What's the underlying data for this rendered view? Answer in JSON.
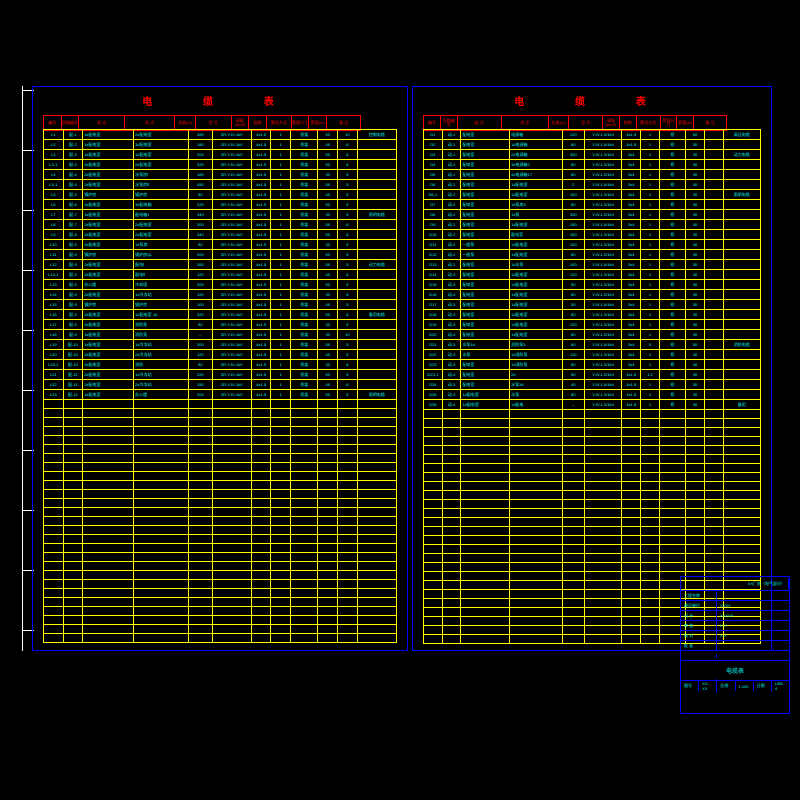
{
  "sheet": {
    "title_cn": "电 缆 表",
    "frame_color": "#0000ff",
    "grid_color": "#ffff00",
    "header_color": "#ff0000",
    "data_color": "#00ffff",
    "background": "#000000"
  },
  "header": {
    "cols": [
      "编号",
      "回路编号",
      "起 点",
      "终 点",
      "长度(m)",
      "型 号",
      "规格(mm²)",
      "根数",
      "敷设方式",
      "套管尺寸",
      "套管(m)",
      "备 注"
    ],
    "group1": "敷 设 方 向",
    "group2": "电 缆 规 格"
  },
  "colwidths": [
    "5%",
    "5%",
    "13%",
    "14%",
    "6%",
    "10%",
    "5%",
    "5%",
    "7%",
    "5%",
    "5%",
    "10%"
  ],
  "left_rows": [
    [
      "L1",
      "配-1",
      "1#配电室",
      "2#配电室",
      "280",
      "ZR-YJV-1kV",
      "4x1.5",
      "1",
      "桥架",
      "50",
      "10",
      "控制电缆"
    ],
    [
      "L2",
      "配-2",
      "1#配电室",
      "3#配电室",
      "180",
      "ZR-YJV-1kV",
      "4x1.5",
      "1",
      "桥架",
      "40",
      "8",
      ""
    ],
    [
      "L3",
      "配-3",
      "1#配电室",
      "1#配电室",
      "200",
      "ZR-YJV-1kV",
      "4x1.5",
      "1",
      "桥架",
      "50",
      "6",
      ""
    ],
    [
      "L3-1",
      "配-3",
      "2#配电室",
      "2#配电室",
      "320",
      "ZR-YJV-1kV",
      "4x1.5",
      "1",
      "桥架",
      "50",
      "6",
      ""
    ],
    [
      "L4",
      "配-4",
      "2#配电室",
      "水泵房Ⅰ",
      "180",
      "ZR-YJV-1kV",
      "4x1.5",
      "1",
      "桥架",
      "30",
      "5",
      ""
    ],
    [
      "L5-1",
      "配-4",
      "2#配电室",
      "水泵房Ⅱ",
      "450",
      "ZR-YJV-1kV",
      "4x1.5",
      "1",
      "桥架",
      "50",
      "5",
      ""
    ],
    [
      "L5",
      "配-5",
      "锅炉房",
      "锅炉房",
      "80",
      "ZR-YJV-1kV",
      "4x1.5",
      "1",
      "桥架",
      "40",
      "5",
      ""
    ],
    [
      "L6",
      "配-6",
      "1#配电室",
      "3#配电箱",
      "220",
      "ZR-YJV-1kV",
      "4x1.5",
      "1",
      "桥架",
      "50",
      "5",
      ""
    ],
    [
      "L7",
      "配-7",
      "1#配电室",
      "配电箱1",
      "340",
      "ZR-YJV-1kV",
      "4x1.5",
      "1",
      "桥架",
      "30",
      "5",
      "照明电缆"
    ],
    [
      "L8",
      "配-7",
      "2#配电室",
      "2#配电室",
      "200",
      "ZR-YJV-1kV",
      "4x1.5",
      "1",
      "桥架",
      "50",
      "8",
      ""
    ],
    [
      "L9",
      "配-8",
      "2#配电室",
      "2#配电室",
      "340",
      "ZR-YJV-1kV",
      "4x1.5",
      "1",
      "桥架",
      "50",
      "8",
      ""
    ],
    [
      "L10",
      "配-9",
      "2#配电室",
      "1#泵房",
      "80",
      "ZR-YJV-1kV",
      "4x1.5",
      "1",
      "桥架",
      "30",
      "5",
      ""
    ],
    [
      "L11",
      "配-9",
      "锅炉房",
      "锅炉房QL",
      "200",
      "ZR-YJV-1kV",
      "4x1.5",
      "1",
      "桥架",
      "50",
      "5",
      ""
    ],
    [
      "L12",
      "配-9",
      "2#配电室",
      "配电Ⅰ",
      "260",
      "ZR-YJV-1kV",
      "4x1.5",
      "1",
      "桥架",
      "50",
      "5",
      "动力电缆"
    ],
    [
      "L12-1",
      "配-9",
      "2#配电室",
      "配电Ⅱ",
      "120",
      "ZR-YJV-1kV",
      "4x1.5",
      "1",
      "桥架",
      "40",
      "6",
      ""
    ],
    [
      "L13",
      "配-9",
      "办公楼",
      "冷却塔",
      "200",
      "ZR-YJV-1kV",
      "4x1.5",
      "1",
      "桥架",
      "50",
      "5",
      ""
    ],
    [
      "L14",
      "配-9",
      "2#配电室",
      "1#冷冻站",
      "120",
      "ZR-YJV-1kV",
      "4x1.5",
      "1",
      "桥架",
      "30",
      "8",
      ""
    ],
    [
      "L15",
      "配-9",
      "锅炉房",
      "锅炉房",
      "100",
      "ZR-YJV-1kV",
      "4x1.5",
      "1",
      "桥架",
      "40",
      "5",
      ""
    ],
    [
      "L16",
      "配-9",
      "2#配电室",
      "1#配电室-1#",
      "320",
      "ZR-YJV-1kV",
      "4x1.5",
      "1",
      "桥架",
      "50",
      "8",
      "备用电缆"
    ],
    [
      "L17",
      "配-9",
      "2#配电室",
      "消防泵",
      "80",
      "ZR-YJV-1kV",
      "4x1.5",
      "1",
      "桥架",
      "30",
      "5",
      ""
    ],
    [
      "L18",
      "配-9",
      "1#配电室",
      "消防泵",
      "--",
      "ZR-YJV-1kV",
      "4x1.5",
      "1",
      "桥架",
      "30",
      "10",
      ""
    ],
    [
      "L19",
      "配-10",
      "1#配电室",
      "1#冷冻站",
      "200",
      "ZR-YJV-1kV",
      "4x1.5",
      "1",
      "桥架",
      "50",
      "5",
      ""
    ],
    [
      "L20",
      "配-10",
      "2#配电室",
      "2#冷冻站",
      "120",
      "ZR-YJV-1kV",
      "4x1.5",
      "1",
      "桥架",
      "40",
      "5",
      ""
    ],
    [
      "L20-1",
      "配-10",
      "2#配电室",
      "消防",
      "80",
      "ZR-YJV-1kV",
      "4x1.5",
      "1",
      "桥架",
      "30",
      "8",
      ""
    ],
    [
      "L21",
      "配-11",
      "2#配电室",
      "1#冷冻站",
      "220",
      "ZR-YJV-1kV",
      "4x1.5",
      "1",
      "桥架",
      "50",
      "5",
      ""
    ],
    [
      "L22",
      "配-11",
      "2#配电室",
      "2#冷冻站",
      "150",
      "ZR-YJV-1kV",
      "4x1.5",
      "1",
      "桥架",
      "40",
      "8",
      ""
    ],
    [
      "L23",
      "配-12",
      "1#配电室",
      "办公楼",
      "200",
      "ZR-YJV-1kV",
      "4x1.5",
      "1",
      "桥架",
      "50",
      "5",
      "照明电缆"
    ],
    [
      "",
      "",
      "",
      "",
      "",
      "",
      "",
      "",
      "",
      "",
      "",
      ""
    ],
    [
      "",
      "",
      "",
      "",
      "",
      "",
      "",
      "",
      "",
      "",
      "",
      ""
    ],
    [
      "",
      "",
      "",
      "",
      "",
      "",
      "",
      "",
      "",
      "",
      "",
      ""
    ],
    [
      "",
      "",
      "",
      "",
      "",
      "",
      "",
      "",
      "",
      "",
      "",
      ""
    ],
    [
      "",
      "",
      "",
      "",
      "",
      "",
      "",
      "",
      "",
      "",
      "",
      ""
    ],
    [
      "",
      "",
      "",
      "",
      "",
      "",
      "",
      "",
      "",
      "",
      "",
      ""
    ],
    [
      "",
      "",
      "",
      "",
      "",
      "",
      "",
      "",
      "",
      "",
      "",
      ""
    ],
    [
      "",
      "",
      "",
      "",
      "",
      "",
      "",
      "",
      "",
      "",
      "",
      ""
    ],
    [
      "",
      "",
      "",
      "",
      "",
      "",
      "",
      "",
      "",
      "",
      "",
      ""
    ],
    [
      "",
      "",
      "",
      "",
      "",
      "",
      "",
      "",
      "",
      "",
      "",
      ""
    ],
    [
      "",
      "",
      "",
      "",
      "",
      "",
      "",
      "",
      "",
      "",
      "",
      ""
    ],
    [
      "",
      "",
      "",
      "",
      "",
      "",
      "",
      "",
      "",
      "",
      "",
      ""
    ],
    [
      "",
      "",
      "",
      "",
      "",
      "",
      "",
      "",
      "",
      "",
      "",
      ""
    ],
    [
      "",
      "",
      "",
      "",
      "",
      "",
      "",
      "",
      "",
      "",
      "",
      ""
    ],
    [
      "",
      "",
      "",
      "",
      "",
      "",
      "",
      "",
      "",
      "",
      "",
      ""
    ],
    [
      "",
      "",
      "",
      "",
      "",
      "",
      "",
      "",
      "",
      "",
      "",
      ""
    ],
    [
      "",
      "",
      "",
      "",
      "",
      "",
      "",
      "",
      "",
      "",
      "",
      ""
    ],
    [
      "",
      "",
      "",
      "",
      "",
      "",
      "",
      "",
      "",
      "",
      "",
      ""
    ],
    [
      "",
      "",
      "",
      "",
      "",
      "",
      "",
      "",
      "",
      "",
      "",
      ""
    ],
    [
      "",
      "",
      "",
      "",
      "",
      "",
      "",
      "",
      "",
      "",
      "",
      ""
    ],
    [
      "",
      "",
      "",
      "",
      "",
      "",
      "",
      "",
      "",
      "",
      "",
      ""
    ],
    [
      "",
      "",
      "",
      "",
      "",
      "",
      "",
      "",
      "",
      "",
      "",
      ""
    ],
    [
      "",
      "",
      "",
      "",
      "",
      "",
      "",
      "",
      "",
      "",
      "",
      ""
    ],
    [
      "",
      "",
      "",
      "",
      "",
      "",
      "",
      "",
      "",
      "",
      "",
      ""
    ],
    [
      "",
      "",
      "",
      "",
      "",
      "",
      "",
      "",
      "",
      "",
      "",
      ""
    ],
    [
      "",
      "",
      "",
      "",
      "",
      "",
      "",
      "",
      "",
      "",
      "",
      ""
    ],
    [
      "",
      "",
      "",
      "",
      "",
      "",
      "",
      "",
      "",
      "",
      "",
      ""
    ]
  ],
  "right_rows": [
    [
      "D1",
      "动-1",
      "配电室",
      "电源箱",
      "120",
      "YJV-1.0/1kV",
      "4x1.5",
      "1",
      "桥",
      "50",
      "",
      "高压电缆"
    ],
    [
      "D2",
      "动-1",
      "配电室",
      "1#电源箱",
      "80",
      "YJV-1.0/1kV",
      "4x1.5",
      "1",
      "桥",
      "30",
      "",
      ""
    ],
    [
      "D3",
      "动-1",
      "配电室",
      "2#电源箱",
      "300",
      "YJV-1.0/1kV",
      "3x4",
      "1",
      "桥",
      "30",
      "",
      "动力电缆"
    ],
    [
      "D4",
      "动-1",
      "配电室",
      "3#电源箱2",
      "80",
      "YJV-1.0/1kV",
      "3x4",
      "1",
      "桥",
      "30",
      "",
      ""
    ],
    [
      "D5",
      "动-1",
      "配电室",
      "4#电源箱17",
      "80",
      "YJV-1.0/1kV",
      "3x4",
      "1",
      "桥",
      "30",
      "",
      ""
    ],
    [
      "D6",
      "动-2",
      "配电室",
      "1#配电室",
      "2",
      "YJV-1.0/1kV",
      "3x4",
      "1",
      "桥",
      "40",
      "",
      ""
    ],
    [
      "D6-1",
      "动-2",
      "配电室",
      "1#配电室",
      "100",
      "YJV-1.0/1kV",
      "3x4",
      "1",
      "桥",
      "30",
      "",
      "照明电缆"
    ],
    [
      "D7",
      "动-2",
      "配电室",
      "1#泵房6",
      "80",
      "YJV-1.0/1kV",
      "3x4",
      "1",
      "桥",
      "30",
      "",
      ""
    ],
    [
      "D8",
      "动-2",
      "配电室",
      "1#泵",
      "340",
      "YJV-1.0/1kV",
      "3x4",
      "1",
      "桥",
      "30",
      "",
      ""
    ],
    [
      "D9",
      "动-2",
      "配电室",
      "1#配电室",
      "150",
      "YJV-1.0/1kV",
      "3x4",
      "1",
      "桥",
      "40",
      "",
      ""
    ],
    [
      "D10",
      "动-2",
      "配电室",
      "配电室",
      "180",
      "YJV-1.0/1kV",
      "3x4",
      "1",
      "桥",
      "30",
      "",
      ""
    ],
    [
      "D11",
      "动-2",
      "一般泵",
      "1#配电室",
      "100",
      "YJV-1.0/1kV",
      "3x4",
      "1",
      "桥",
      "40",
      "",
      ""
    ],
    [
      "D12",
      "动-2",
      "一般泵",
      "1#配电室",
      "80",
      "YJV-1.0/1kV",
      "3x4",
      "1",
      "桥",
      "30",
      "",
      ""
    ],
    [
      "D13",
      "动-2",
      "配电室",
      "1#水泵",
      "100",
      "YJV-1.0/1kV",
      "3x4",
      "1",
      "桥",
      "30",
      "",
      ""
    ],
    [
      "D14",
      "动-3",
      "配电室",
      "1#配电室",
      "120",
      "YJV-1.0/1kV",
      "3x4",
      "1",
      "桥",
      "40",
      "",
      ""
    ],
    [
      "D15",
      "动-3",
      "配电室",
      "1#配电室",
      "50",
      "YJV-1.0/1kV",
      "3x4",
      "1",
      "桥",
      "30",
      "",
      ""
    ],
    [
      "D16",
      "动-3",
      "配电室",
      "1#配电室",
      "80",
      "YJV-1.0/1kV",
      "3x4",
      "1",
      "桥",
      "30",
      "",
      ""
    ],
    [
      "D17",
      "动-3",
      "配电室",
      "1#配电室",
      "30",
      "YJV-1.0/1kV",
      "3x4",
      "1",
      "桥",
      "30",
      "",
      ""
    ],
    [
      "D18",
      "动-3",
      "配电室",
      "1#配电室",
      "60",
      "YJV-1.0/1kV",
      "3x4",
      "1",
      "桥",
      "30",
      "",
      ""
    ],
    [
      "D19",
      "动-3",
      "配电室",
      "1#配电室",
      "120",
      "YJV-1.0/1kV",
      "3x4",
      "1",
      "桥",
      "30",
      "",
      ""
    ],
    [
      "D20",
      "动-3",
      "配电室",
      "1#配电室",
      "80",
      "YJV-1.0/1kV",
      "3x4",
      "1",
      "桥",
      "30",
      "",
      ""
    ],
    [
      "D21",
      "动-3",
      "水泵1#",
      "消防泵3",
      "60",
      "YJV-1.0/1kV",
      "3x4",
      "5",
      "桥",
      "50",
      "",
      "消防电缆"
    ],
    [
      "D22",
      "动-3",
      "水泵",
      "1#消防泵",
      "110",
      "YJV-1.0/1kV",
      "3x4",
      "1",
      "桥",
      "40",
      "",
      ""
    ],
    [
      "D23",
      "动-3",
      "配电室",
      "1#消防泵",
      "80",
      "YJV-1.0/1kV",
      "3x4",
      "1",
      "桥",
      "40",
      "",
      ""
    ],
    [
      "D23-1",
      "动-3",
      "配电室",
      "2#",
      "50",
      "YJV-1.0/1kV",
      "4x1.5",
      "1.2",
      "桥",
      "30",
      "",
      ""
    ],
    [
      "D24",
      "动-3",
      "配电室",
      "水泵3#",
      "40",
      "YJV-1.0/1kV",
      "4x1.5",
      "1",
      "桥",
      "30",
      "",
      ""
    ],
    [
      "D25",
      "动-3",
      "1#配电室",
      "水泵",
      "80",
      "YJV-1.0/1kV",
      "4x1.5",
      "1",
      "桥",
      "30",
      "",
      ""
    ],
    [
      "D26",
      "动-4",
      "1#配电室",
      "1#配电",
      "--",
      "YJV-1.0/1kV",
      "4x1.5",
      "1",
      "桥",
      "30",
      "",
      "备用"
    ],
    [
      "",
      "",
      "",
      "",
      "",
      "",
      "",
      "",
      "",
      "",
      "",
      ""
    ],
    [
      "",
      "",
      "",
      "",
      "",
      "",
      "",
      "",
      "",
      "",
      "",
      ""
    ],
    [
      "",
      "",
      "",
      "",
      "",
      "",
      "",
      "",
      "",
      "",
      "",
      ""
    ],
    [
      "",
      "",
      "",
      "",
      "",
      "",
      "",
      "",
      "",
      "",
      "",
      ""
    ],
    [
      "",
      "",
      "",
      "",
      "",
      "",
      "",
      "",
      "",
      "",
      "",
      ""
    ],
    [
      "",
      "",
      "",
      "",
      "",
      "",
      "",
      "",
      "",
      "",
      "",
      ""
    ],
    [
      "",
      "",
      "",
      "",
      "",
      "",
      "",
      "",
      "",
      "",
      "",
      ""
    ],
    [
      "",
      "",
      "",
      "",
      "",
      "",
      "",
      "",
      "",
      "",
      "",
      ""
    ],
    [
      "",
      "",
      "",
      "",
      "",
      "",
      "",
      "",
      "",
      "",
      "",
      ""
    ],
    [
      "",
      "",
      "",
      "",
      "",
      "",
      "",
      "",
      "",
      "",
      "",
      ""
    ],
    [
      "",
      "",
      "",
      "",
      "",
      "",
      "",
      "",
      "",
      "",
      "",
      ""
    ],
    [
      "",
      "",
      "",
      "",
      "",
      "",
      "",
      "",
      "",
      "",
      "",
      ""
    ],
    [
      "",
      "",
      "",
      "",
      "",
      "",
      "",
      "",
      "",
      "",
      "",
      ""
    ],
    [
      "",
      "",
      "",
      "",
      "",
      "",
      "",
      "",
      "",
      "",
      "",
      ""
    ],
    [
      "",
      "",
      "",
      "",
      "",
      "",
      "",
      "",
      "",
      "",
      "",
      ""
    ],
    [
      "",
      "",
      "",
      "",
      "",
      "",
      "",
      "",
      "",
      "",
      "",
      ""
    ],
    [
      "",
      "",
      "",
      "",
      "",
      "",
      "",
      "",
      "",
      "",
      "",
      ""
    ],
    [
      "",
      "",
      "",
      "",
      "",
      "",
      "",
      "",
      "",
      "",
      "",
      ""
    ],
    [
      "",
      "",
      "",
      "",
      "",
      "",
      "",
      "",
      "",
      "",
      "",
      ""
    ],
    [
      "",
      "",
      "",
      "",
      "",
      "",
      "",
      "",
      "",
      "",
      "",
      ""
    ],
    [
      "",
      "",
      "",
      "",
      "",
      "",
      "",
      "",
      "",
      "",
      "",
      ""
    ],
    [
      "",
      "",
      "",
      "",
      "",
      "",
      "",
      "",
      "",
      "",
      "",
      ""
    ],
    [
      "",
      "",
      "",
      "",
      "",
      "",
      "",
      "",
      "",
      "",
      "",
      ""
    ],
    [
      "",
      "",
      "",
      "",
      "",
      "",
      "",
      "",
      "",
      "",
      "",
      ""
    ],
    [
      "",
      "",
      "",
      "",
      "",
      "",
      "",
      "",
      "",
      "",
      "",
      ""
    ],
    [
      "",
      "",
      "",
      "",
      "",
      "",
      "",
      "",
      "",
      "",
      "",
      ""
    ]
  ],
  "titleblock": {
    "project": "XX厂房（电气部分）",
    "rows": [
      [
        "工程名称",
        ""
      ],
      [
        "建设单位",
        "XXXX"
      ],
      [
        "设 计",
        "XXXXX"
      ],
      [
        "审 核",
        "X·X"
      ],
      [
        "校 对",
        "X·X"
      ],
      [
        "批 准",
        ""
      ],
      [
        "",
        ""
      ]
    ],
    "drawing_title": "电缆表",
    "footer": [
      [
        "图号",
        "XX-XX"
      ],
      [
        "比例",
        "1:100"
      ],
      [
        "日期",
        "USE-4"
      ]
    ]
  },
  "ruler_ticks": [
    90,
    150,
    210,
    270,
    330,
    390,
    450,
    510,
    570,
    630
  ]
}
